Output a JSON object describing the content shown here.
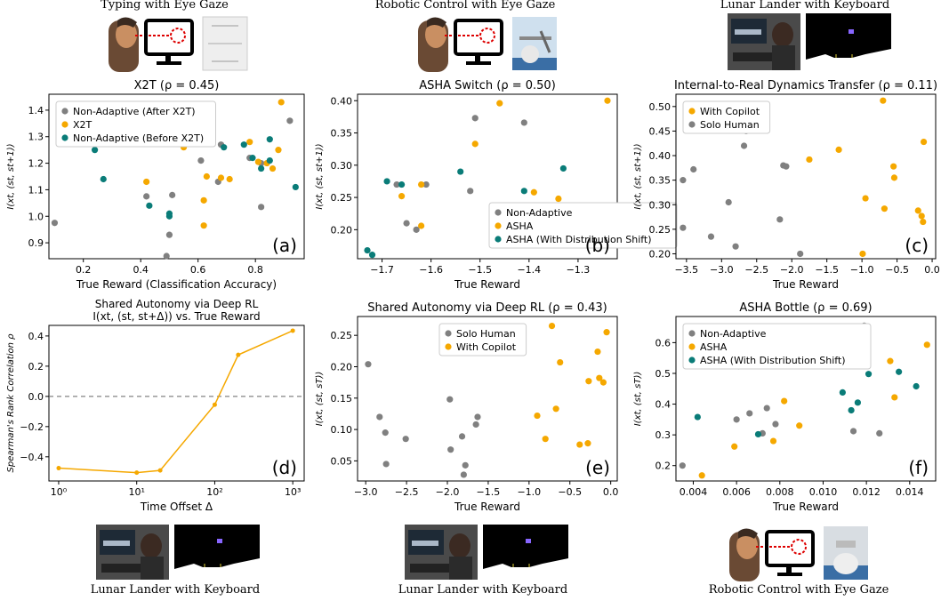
{
  "top_captions": [
    "Typing with Eye Gaze",
    "Robotic Control with Eye Gaze",
    "Lunar Lander with Keyboard"
  ],
  "bottom_captions": [
    "Lunar Lander with Keyboard",
    "Lunar Lander with Keyboard",
    "Robotic Control with Eye Gaze"
  ],
  "colors": {
    "gray": "#808080",
    "orange": "#f5a800",
    "teal": "#0a7c78",
    "line": "#f5a800"
  },
  "chart_data": [
    {
      "type": "scatter",
      "panel_label": "(a)",
      "title": "X2T (ρ = 0.45)",
      "xlabel": "True Reward (Classification Accuracy)",
      "ylabel": "I(xt, (st, st+1))",
      "xlim": [
        0.08,
        0.97
      ],
      "ylim": [
        0.84,
        1.46
      ],
      "xticks": [
        0.2,
        0.4,
        0.6,
        0.8
      ],
      "xtick_labels": [
        "0.2",
        "0.4",
        "0.6",
        "0.8"
      ],
      "yticks": [
        0.9,
        1.0,
        1.1,
        1.2,
        1.3,
        1.4
      ],
      "ytick_labels": [
        "0.9",
        "1.0",
        "1.1",
        "1.2",
        "1.3",
        "1.4"
      ],
      "legend": "top-left",
      "series": [
        {
          "name": "Non-Adaptive (After X2T)",
          "color": "gray",
          "points": [
            [
              0.1,
              0.975
            ],
            [
              0.42,
              1.075
            ],
            [
              0.49,
              0.85
            ],
            [
              0.5,
              0.93
            ],
            [
              0.51,
              1.08
            ],
            [
              0.61,
              1.21
            ],
            [
              0.67,
              1.13
            ],
            [
              0.68,
              1.27
            ],
            [
              0.78,
              1.22
            ],
            [
              0.82,
              1.035
            ],
            [
              0.82,
              1.2
            ],
            [
              0.92,
              1.36
            ]
          ]
        },
        {
          "name": "X2T",
          "color": "orange",
          "points": [
            [
              0.42,
              1.13
            ],
            [
              0.55,
              1.26
            ],
            [
              0.62,
              0.965
            ],
            [
              0.62,
              1.06
            ],
            [
              0.63,
              1.15
            ],
            [
              0.68,
              1.145
            ],
            [
              0.71,
              1.14
            ],
            [
              0.78,
              1.28
            ],
            [
              0.81,
              1.205
            ],
            [
              0.84,
              1.2
            ],
            [
              0.86,
              1.18
            ],
            [
              0.88,
              1.25
            ],
            [
              0.89,
              1.43
            ]
          ]
        },
        {
          "name": "Non-Adaptive (Before X2T)",
          "color": "teal",
          "points": [
            [
              0.24,
              1.25
            ],
            [
              0.27,
              1.14
            ],
            [
              0.43,
              1.04
            ],
            [
              0.5,
              1.0
            ],
            [
              0.5,
              1.01
            ],
            [
              0.69,
              1.26
            ],
            [
              0.76,
              1.27
            ],
            [
              0.79,
              1.22
            ],
            [
              0.82,
              1.18
            ],
            [
              0.85,
              1.21
            ],
            [
              0.85,
              1.29
            ],
            [
              0.94,
              1.11
            ]
          ]
        }
      ]
    },
    {
      "type": "scatter",
      "panel_label": "(b)",
      "title": "ASHA Switch (ρ = 0.50)",
      "xlabel": "True Reward",
      "ylabel": "I(xt, (st, st+1))",
      "xlim": [
        -1.75,
        -1.22
      ],
      "ylim": [
        0.155,
        0.41
      ],
      "xticks": [
        -1.7,
        -1.6,
        -1.5,
        -1.4,
        -1.3
      ],
      "xtick_labels": [
        "−1.7",
        "−1.6",
        "−1.5",
        "−1.4",
        "−1.3"
      ],
      "yticks": [
        0.2,
        0.25,
        0.3,
        0.35,
        0.4
      ],
      "ytick_labels": [
        "0.20",
        "0.25",
        "0.30",
        "0.35",
        "0.40"
      ],
      "legend": "bottom-right",
      "series": [
        {
          "name": "Non-Adaptive",
          "color": "gray",
          "points": [
            [
              -1.67,
              0.27
            ],
            [
              -1.65,
              0.21
            ],
            [
              -1.63,
              0.2
            ],
            [
              -1.61,
              0.27
            ],
            [
              -1.52,
              0.26
            ],
            [
              -1.51,
              0.373
            ],
            [
              -1.41,
              0.366
            ]
          ]
        },
        {
          "name": "ASHA",
          "color": "orange",
          "points": [
            [
              -1.66,
              0.252
            ],
            [
              -1.62,
              0.27
            ],
            [
              -1.62,
              0.206
            ],
            [
              -1.51,
              0.333
            ],
            [
              -1.46,
              0.396
            ],
            [
              -1.39,
              0.258
            ],
            [
              -1.34,
              0.248
            ],
            [
              -1.24,
              0.4
            ]
          ]
        },
        {
          "name": "ASHA (With Distribution Shift)",
          "color": "teal",
          "points": [
            [
              -1.73,
              0.168
            ],
            [
              -1.72,
              0.161
            ],
            [
              -1.69,
              0.275
            ],
            [
              -1.66,
              0.27
            ],
            [
              -1.54,
              0.29
            ],
            [
              -1.41,
              0.26
            ],
            [
              -1.33,
              0.295
            ]
          ]
        }
      ]
    },
    {
      "type": "scatter",
      "panel_label": "(c)",
      "title": "Internal-to-Real Dynamics Transfer (ρ = 0.11)",
      "xlabel": "True Reward",
      "ylabel": "I(xt, (st, st+1))",
      "xlim": [
        -3.65,
        0.05
      ],
      "ylim": [
        0.19,
        0.525
      ],
      "xticks": [
        -3.5,
        -3.0,
        -2.5,
        -2.0,
        -1.5,
        -1.0,
        -0.5,
        0.0
      ],
      "xtick_labels": [
        "−3.5",
        "−3.0",
        "−2.5",
        "−2.0",
        "−1.5",
        "−1.0",
        "−0.5",
        "0.0"
      ],
      "yticks": [
        0.2,
        0.25,
        0.3,
        0.35,
        0.4,
        0.45,
        0.5
      ],
      "ytick_labels": [
        "0.20",
        "0.25",
        "0.30",
        "0.35",
        "0.40",
        "0.45",
        "0.50"
      ],
      "legend": "top-left",
      "series": [
        {
          "name": "With Copilot",
          "color": "orange",
          "points": [
            [
              -1.75,
              0.392
            ],
            [
              -1.33,
              0.412
            ],
            [
              -0.99,
              0.2
            ],
            [
              -0.95,
              0.313
            ],
            [
              -0.68,
              0.292
            ],
            [
              -0.7,
              0.512
            ],
            [
              -0.55,
              0.378
            ],
            [
              -0.54,
              0.355
            ],
            [
              -0.2,
              0.288
            ],
            [
              -0.15,
              0.277
            ],
            [
              -0.13,
              0.265
            ],
            [
              -0.12,
              0.428
            ]
          ]
        },
        {
          "name": "Solo Human",
          "color": "gray",
          "points": [
            [
              -3.55,
              0.35
            ],
            [
              -3.55,
              0.253
            ],
            [
              -3.4,
              0.372
            ],
            [
              -3.15,
              0.235
            ],
            [
              -2.9,
              0.305
            ],
            [
              -2.8,
              0.215
            ],
            [
              -2.68,
              0.42
            ],
            [
              -2.65,
              0.45
            ],
            [
              -2.17,
              0.27
            ],
            [
              -2.12,
              0.38
            ],
            [
              -2.08,
              0.378
            ],
            [
              -1.88,
              0.2
            ]
          ]
        }
      ]
    },
    {
      "type": "line",
      "panel_label": "(d)",
      "title_lines": [
        "Shared Autonomy via Deep RL",
        "I(xt, (st, st+Δ)) vs. True Reward"
      ],
      "xlabel": "Time Offset Δ",
      "ylabel": "Spearman's Rank Correlation ρ",
      "xscale": "log",
      "xlim": [
        0.75,
        1400
      ],
      "ylim": [
        -0.56,
        0.47
      ],
      "xticks": [
        1,
        10,
        100,
        1000
      ],
      "xtick_labels": [
        "10⁰",
        "10¹",
        "10²",
        "10³"
      ],
      "yticks": [
        -0.4,
        -0.2,
        0.0,
        0.2,
        0.4
      ],
      "ytick_labels": [
        "−0.4",
        "−0.2",
        "0.0",
        "0.2",
        "0.4"
      ],
      "reference_line": 0.0,
      "series": [
        {
          "color": "line",
          "points": [
            [
              1,
              -0.475
            ],
            [
              10,
              -0.505
            ],
            [
              20,
              -0.49
            ],
            [
              100,
              -0.055
            ],
            [
              200,
              0.275
            ],
            [
              1000,
              0.435
            ]
          ]
        }
      ]
    },
    {
      "type": "scatter",
      "panel_label": "(e)",
      "title": "Shared Autonomy via Deep RL (ρ = 0.43)",
      "xlabel": "True Reward",
      "ylabel": "I(xt, (st, sT))",
      "xlim": [
        -3.1,
        0.08
      ],
      "ylim": [
        0.018,
        0.28
      ],
      "xticks": [
        -3.0,
        -2.5,
        -2.0,
        -1.5,
        -1.0,
        -0.5,
        0.0
      ],
      "xtick_labels": [
        "−3.0",
        "−2.5",
        "−2.0",
        "−1.5",
        "−1.0",
        "−0.5",
        "0.0"
      ],
      "yticks": [
        0.05,
        0.1,
        0.15,
        0.2,
        0.25
      ],
      "ytick_labels": [
        "0.05",
        "0.10",
        "0.15",
        "0.20",
        "0.25"
      ],
      "legend": "top-center",
      "series": [
        {
          "name": "Solo Human",
          "color": "gray",
          "points": [
            [
              -2.97,
              0.204
            ],
            [
              -2.83,
              0.12
            ],
            [
              -2.76,
              0.095
            ],
            [
              -2.75,
              0.045
            ],
            [
              -2.51,
              0.085
            ],
            [
              -1.97,
              0.148
            ],
            [
              -1.96,
              0.068
            ],
            [
              -1.82,
              0.089
            ],
            [
              -1.8,
              0.028
            ],
            [
              -1.78,
              0.043
            ],
            [
              -1.65,
              0.108
            ],
            [
              -1.63,
              0.12
            ]
          ]
        },
        {
          "name": "With Copilot",
          "color": "orange",
          "points": [
            [
              -0.9,
              0.122
            ],
            [
              -0.8,
              0.085
            ],
            [
              -0.72,
              0.265
            ],
            [
              -0.67,
              0.133
            ],
            [
              -0.62,
              0.207
            ],
            [
              -0.38,
              0.076
            ],
            [
              -0.28,
              0.078
            ],
            [
              -0.27,
              0.177
            ],
            [
              -0.16,
              0.224
            ],
            [
              -0.14,
              0.182
            ],
            [
              -0.09,
              0.175
            ],
            [
              -0.05,
              0.255
            ]
          ]
        }
      ]
    },
    {
      "type": "scatter",
      "panel_label": "(f)",
      "title": "ASHA Bottle (ρ = 0.69)",
      "xlabel": "True Reward",
      "ylabel": "I(xt, (st, sT))",
      "xlim": [
        0.0032,
        0.0152
      ],
      "ylim": [
        0.15,
        0.685
      ],
      "xticks": [
        0.004,
        0.006,
        0.008,
        0.01,
        0.012,
        0.014
      ],
      "xtick_labels": [
        "0.004",
        "0.006",
        "0.008",
        "0.010",
        "0.012",
        "0.014"
      ],
      "yticks": [
        0.2,
        0.3,
        0.4,
        0.5,
        0.6
      ],
      "ytick_labels": [
        "0.2",
        "0.3",
        "0.4",
        "0.5",
        "0.6"
      ],
      "legend": "top-left",
      "series": [
        {
          "name": "Non-Adaptive",
          "color": "gray",
          "points": [
            [
              0.0035,
              0.2
            ],
            [
              0.006,
              0.35
            ],
            [
              0.0066,
              0.37
            ],
            [
              0.0072,
              0.305
            ],
            [
              0.0074,
              0.387
            ],
            [
              0.0078,
              0.335
            ],
            [
              0.0114,
              0.312
            ],
            [
              0.0119,
              0.655
            ],
            [
              0.0126,
              0.305
            ]
          ]
        },
        {
          "name": "ASHA",
          "color": "orange",
          "points": [
            [
              0.0044,
              0.168
            ],
            [
              0.0059,
              0.262
            ],
            [
              0.0077,
              0.28
            ],
            [
              0.0082,
              0.41
            ],
            [
              0.0089,
              0.33
            ],
            [
              0.0131,
              0.54
            ],
            [
              0.0133,
              0.422
            ],
            [
              0.0148,
              0.593
            ]
          ]
        },
        {
          "name": "ASHA (With Distribution Shift)",
          "color": "teal",
          "points": [
            [
              0.0042,
              0.358
            ],
            [
              0.0061,
              0.523
            ],
            [
              0.007,
              0.302
            ],
            [
              0.0109,
              0.438
            ],
            [
              0.0113,
              0.38
            ],
            [
              0.0116,
              0.405
            ],
            [
              0.0121,
              0.498
            ],
            [
              0.0135,
              0.505
            ],
            [
              0.0143,
              0.458
            ]
          ]
        }
      ]
    }
  ]
}
